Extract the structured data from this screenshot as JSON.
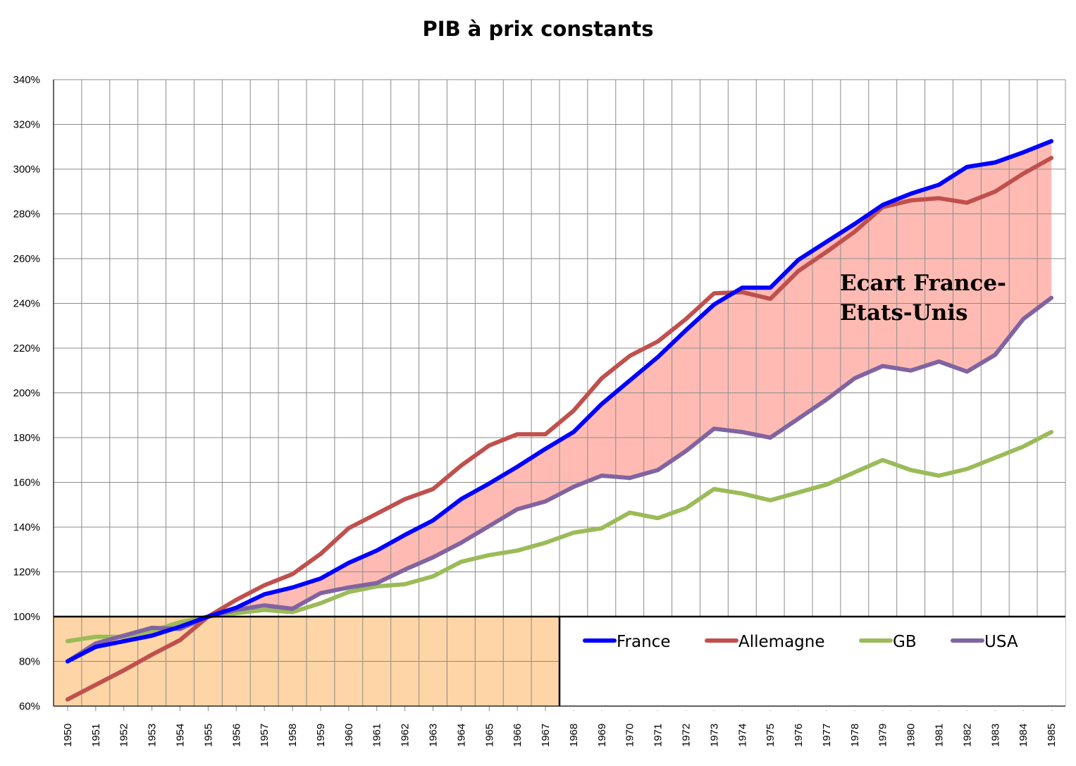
{
  "chart_data": {
    "type": "line",
    "title": "PIB à prix constants",
    "xlabel": "",
    "ylabel": "",
    "x": [
      "1950",
      "1951",
      "1952",
      "1953",
      "1954",
      "1955",
      "1956",
      "1957",
      "1958",
      "1959",
      "1960",
      "1961",
      "1962",
      "1963",
      "1964",
      "1965",
      "1966",
      "1967",
      "1968",
      "1969",
      "1970",
      "1971",
      "1972",
      "1973",
      "1974",
      "1975",
      "1976",
      "1977",
      "1978",
      "1979",
      "1980",
      "1981",
      "1982",
      "1983",
      "1984",
      "1985"
    ],
    "ylim": [
      60,
      340
    ],
    "yticks": [
      "60%",
      "80%",
      "100%",
      "120%",
      "140%",
      "160%",
      "180%",
      "200%",
      "220%",
      "240%",
      "260%",
      "280%",
      "300%",
      "320%",
      "340%"
    ],
    "grid": true,
    "legend_position": "bottom-right",
    "series": [
      {
        "name": "France",
        "color": "#0000FF",
        "values": [
          80,
          86.5,
          89,
          91.5,
          95.5,
          100,
          104,
          110,
          113,
          117,
          124,
          129.5,
          136.5,
          143,
          152.5,
          159.5,
          167,
          175,
          182.5,
          195,
          205.5,
          216,
          228,
          239.5,
          247,
          247,
          259.5,
          267.5,
          275.5,
          284,
          289,
          293,
          301,
          303,
          307.5,
          312.5
        ]
      },
      {
        "name": "Allemagne",
        "color": "#C0504D",
        "values": [
          63,
          69.5,
          76,
          83,
          89.5,
          100,
          107.5,
          114,
          119,
          128,
          139.5,
          146,
          152.5,
          157,
          167.5,
          176.5,
          181.5,
          181.5,
          192,
          206.5,
          216.5,
          223,
          233,
          244.5,
          245,
          242,
          254.5,
          263,
          272,
          283,
          286,
          287,
          285,
          290,
          298,
          305
        ]
      },
      {
        "name": "GB",
        "color": "#9BBB59",
        "values": [
          89,
          91,
          91,
          93.5,
          97.5,
          100,
          101.5,
          103,
          102,
          106,
          111,
          113.5,
          114.5,
          118,
          124.5,
          127.5,
          129.5,
          133,
          137.5,
          139.5,
          146.5,
          144,
          148.5,
          157,
          155,
          152,
          155.5,
          159,
          164.5,
          170,
          165.5,
          163,
          166,
          171,
          176,
          182.5
        ]
      },
      {
        "name": "USA",
        "color": "#8064A2",
        "values": [
          80,
          88,
          91.5,
          95,
          94.5,
          100,
          103,
          105,
          103.5,
          110.5,
          113,
          115,
          121,
          126.5,
          133,
          140.5,
          148,
          151.5,
          158,
          163,
          162,
          165.5,
          174,
          184,
          182.5,
          180,
          188.5,
          197,
          206.5,
          212,
          210,
          214,
          209.5,
          217,
          233,
          242.5
        ]
      }
    ],
    "shaded_band": {
      "between": [
        "France",
        "USA"
      ],
      "color": "#FFBBB3"
    },
    "baseline_box": {
      "value": 100,
      "from": "1950",
      "to": "1967",
      "color": "#FDD5A6"
    },
    "annotation": {
      "lines": [
        "Ecart France-",
        "Etats-Unis"
      ]
    }
  }
}
